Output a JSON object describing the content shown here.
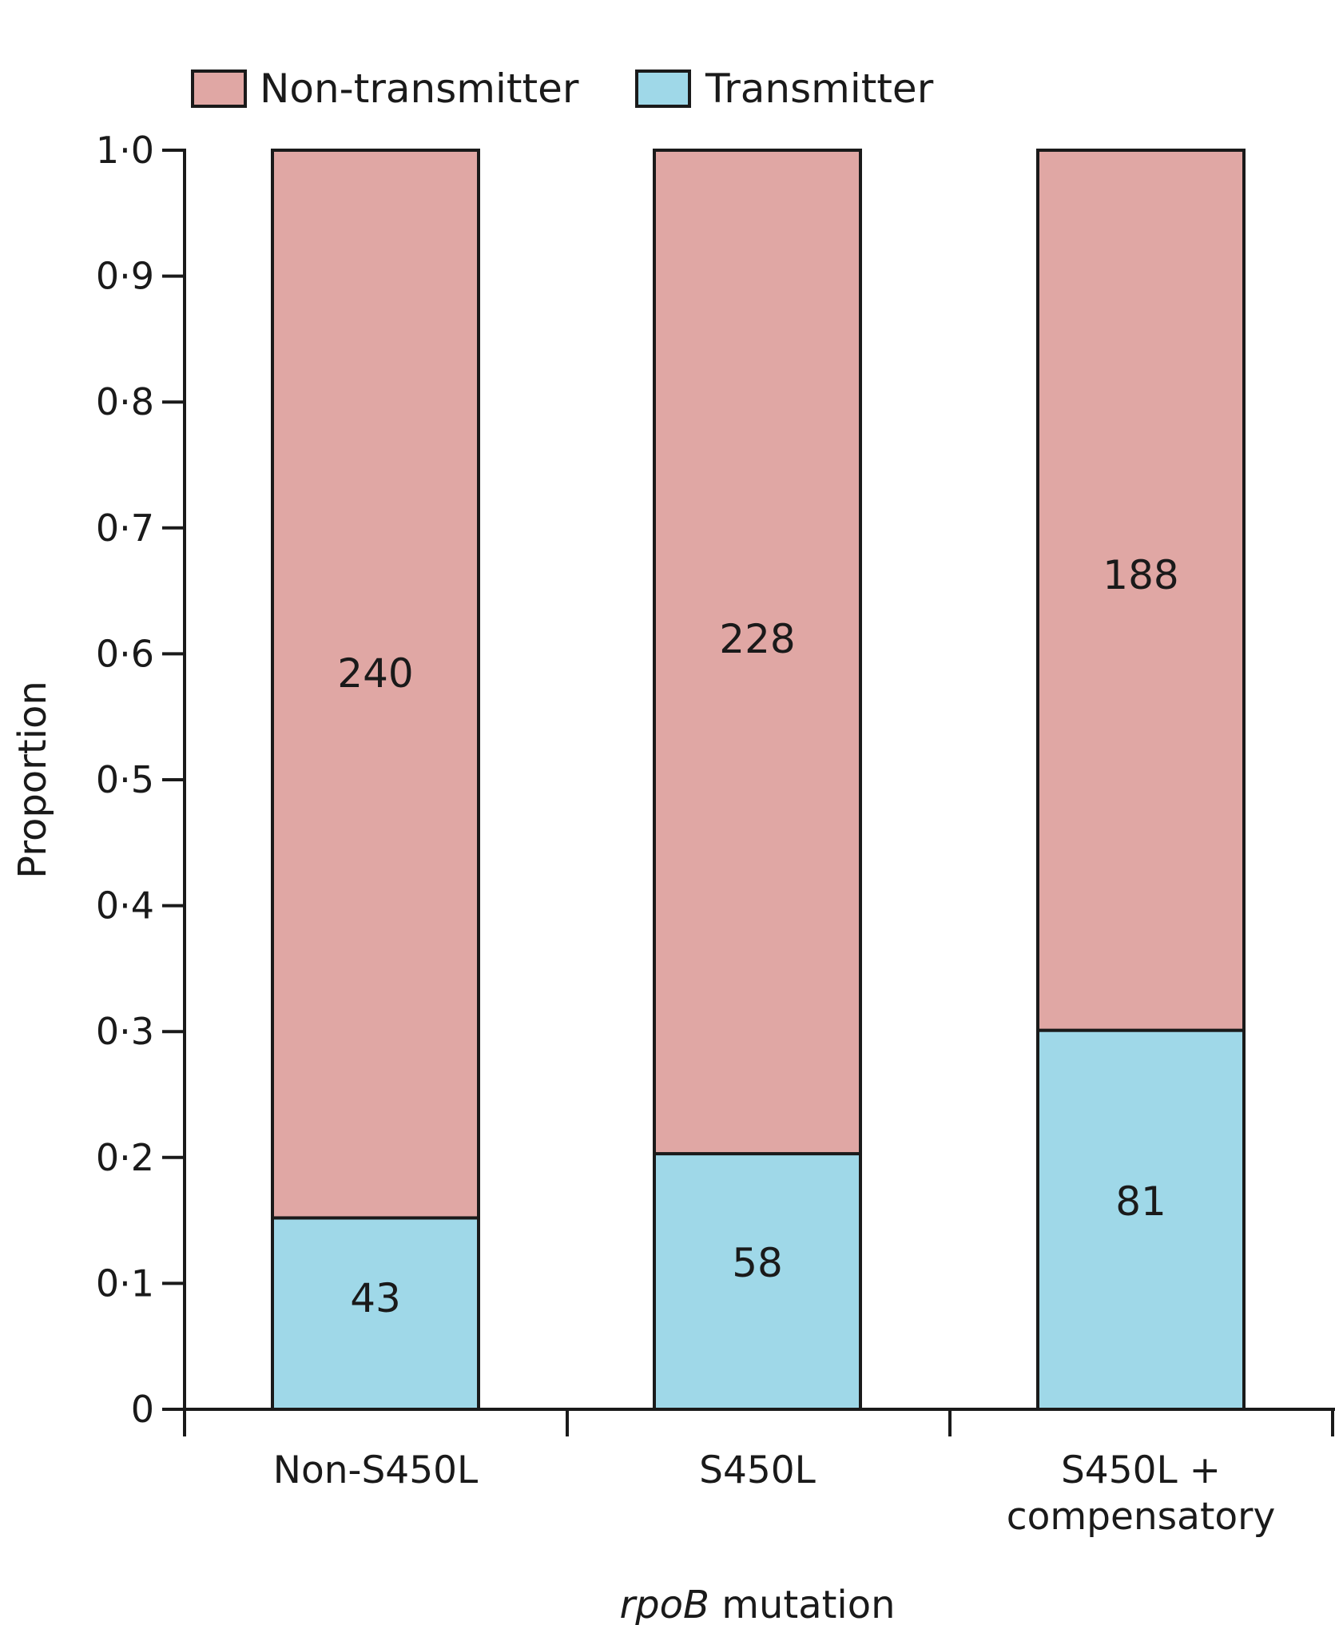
{
  "chart_data": {
    "type": "bar",
    "stacked": true,
    "categories": [
      [
        "Non-S450L"
      ],
      [
        "S450L"
      ],
      [
        "S450L +",
        "compensatory"
      ]
    ],
    "series": [
      {
        "name": "Transmitter",
        "color": "#9fd8e8",
        "counts": [
          "43",
          "58",
          "81"
        ],
        "values": [
          0.152,
          0.203,
          0.301
        ]
      },
      {
        "name": "Non-transmitter",
        "color": "#e0a7a4",
        "counts": [
          "240",
          "228",
          "188"
        ],
        "values": [
          0.848,
          0.797,
          0.699
        ]
      }
    ],
    "legend": {
      "placement": "top-left",
      "items": [
        {
          "label": "Non-transmitter",
          "color": "#e0a7a4"
        },
        {
          "label": "Transmitter",
          "color": "#9fd8e8"
        }
      ]
    },
    "yticks": [
      "0",
      "0·1",
      "0·2",
      "0·3",
      "0·4",
      "0·5",
      "0·6",
      "0·7",
      "0·8",
      "0·9",
      "1·0"
    ],
    "ylim": [
      0,
      1
    ],
    "ylabel": "Proportion",
    "xlabel_italic": "rpoB",
    "xlabel_rest": " mutation",
    "grid": false
  }
}
